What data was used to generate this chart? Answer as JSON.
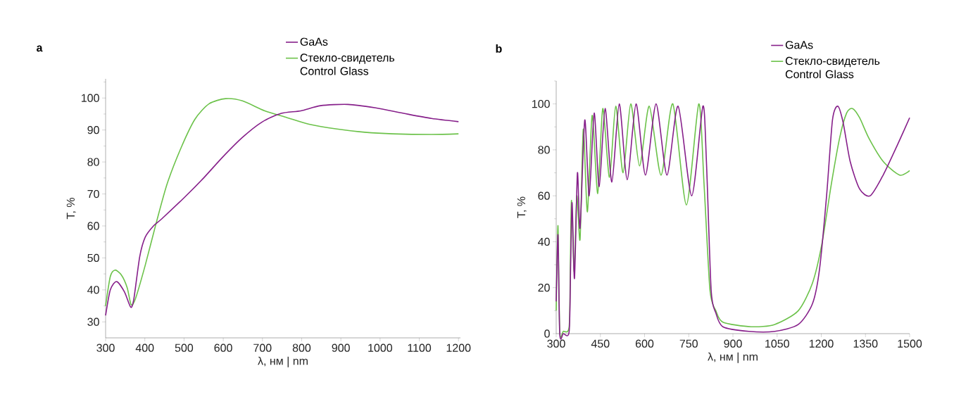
{
  "chart_data": [
    {
      "type": "line",
      "title": "a",
      "xlabel": "λ, нм | nm",
      "ylabel": "T, %",
      "legend": "top right",
      "xlim": [
        300,
        1205
      ],
      "ylim": [
        25,
        106
      ],
      "xticks": [
        300,
        400,
        500,
        600,
        700,
        800,
        900,
        1000,
        1100,
        1200
      ],
      "yticks": [
        30,
        {
          "value": 35,
          "label": null
        },
        40,
        {
          "value": 45,
          "label": null
        },
        50,
        {
          "value": 55,
          "label": null
        },
        60,
        {
          "value": 65,
          "label": null
        },
        70,
        {
          "value": 75,
          "label": null
        },
        80,
        {
          "value": 85,
          "label": null
        },
        90,
        {
          "value": 95,
          "label": null
        },
        100,
        {
          "value": 105,
          "label": null
        }
      ],
      "series": [
        {
          "name": "GaAs",
          "color": "#861f8a",
          "x": [
            300,
            312,
            328,
            348,
            364,
            372,
            387,
            401,
            422,
            443,
            500,
            550,
            599,
            649,
            699,
            748,
            798,
            848,
            918,
            989,
            1060,
            1131,
            1200
          ],
          "values": [
            32,
            40,
            42.6,
            39.4,
            34.6,
            37.2,
            50.4,
            56.5,
            60,
            62.2,
            68.8,
            75,
            81.6,
            87.7,
            92.5,
            95.2,
            96,
            97.6,
            98,
            96.9,
            95.2,
            93.6,
            92.6
          ]
        },
        {
          "name": "Стекло-свидетель Control Glass",
          "color": "#6cc24a",
          "x": [
            300,
            312,
            324,
            340,
            355,
            365,
            376,
            401,
            429,
            457,
            493,
            528,
            564,
            606,
            649,
            706,
            762,
            819,
            890,
            961,
            1032,
            1131,
            1200
          ],
          "values": [
            35,
            44.2,
            46.2,
            44.7,
            40.7,
            35.4,
            37.2,
            47.7,
            60.9,
            73.2,
            84.6,
            93.4,
            98.2,
            99.8,
            99.1,
            96,
            93.9,
            91.8,
            90.3,
            89.3,
            88.8,
            88.6,
            88.8
          ]
        }
      ]
    },
    {
      "type": "line",
      "title": "b",
      "xlabel": "λ, нм | nm",
      "ylabel": "T, %",
      "legend": "top right",
      "xlim": [
        300,
        1500
      ],
      "ylim": [
        0,
        110
      ],
      "xticks": [
        300,
        450,
        600,
        750,
        900,
        1050,
        1200,
        1350,
        1500
      ],
      "yticks": [
        0,
        {
          "value": 10,
          "label": null
        },
        20,
        {
          "value": 30,
          "label": null
        },
        40,
        {
          "value": 50,
          "label": null
        },
        60,
        {
          "value": 70,
          "label": null
        },
        80,
        {
          "value": 90,
          "label": null
        },
        100,
        {
          "value": 110,
          "label": null
        }
      ],
      "series": [
        {
          "name": "GaAs",
          "color": "#861f8a",
          "x": [
            300,
            306,
            312,
            324,
            344,
            349,
            354,
            362,
            372,
            381,
            397,
            412,
            429,
            446,
            466,
            489,
            514,
            541,
            571,
            603,
            639,
            676,
            714,
            760,
            798,
            810,
            826,
            842,
            866,
            954,
            1042,
            1122,
            1170,
            1194,
            1218,
            1238,
            1256,
            1274,
            1298,
            1330,
            1366,
            1410,
            1458,
            1500
          ],
          "values": [
            14,
            43,
            0,
            0,
            1,
            30,
            57,
            24,
            70,
            46,
            93,
            60,
            96,
            64,
            98,
            66,
            100,
            67,
            100,
            69,
            100,
            69,
            99,
            60,
            99,
            75,
            19,
            9,
            3,
            1,
            1,
            4,
            13,
            28,
            60,
            93,
            99,
            92,
            75,
            63,
            60,
            69,
            82,
            94
          ]
        },
        {
          "name": "Стекло-свидетель Control Glass",
          "color": "#6cc24a",
          "x": [
            300,
            306,
            312,
            324,
            344,
            348,
            352,
            361,
            370,
            381,
            392,
            406,
            422,
            441,
            458,
            481,
            502,
            527,
            553,
            583,
            616,
            656,
            696,
            742,
            784,
            802,
            822,
            842,
            866,
            962,
            1042,
            1122,
            1170,
            1202,
            1234,
            1262,
            1286,
            1306,
            1330,
            1362,
            1410,
            1466,
            1500
          ],
          "values": [
            10,
            47,
            1,
            1,
            3,
            30,
            58,
            27,
            60,
            41,
            89,
            53,
            95,
            61,
            98,
            68,
            99,
            70,
            100,
            73,
            99,
            69,
            100,
            56,
            100,
            65,
            19,
            10,
            5,
            3,
            4,
            10,
            22,
            39,
            65,
            85,
            96,
            98,
            94,
            85,
            75,
            69,
            71
          ]
        }
      ]
    }
  ]
}
